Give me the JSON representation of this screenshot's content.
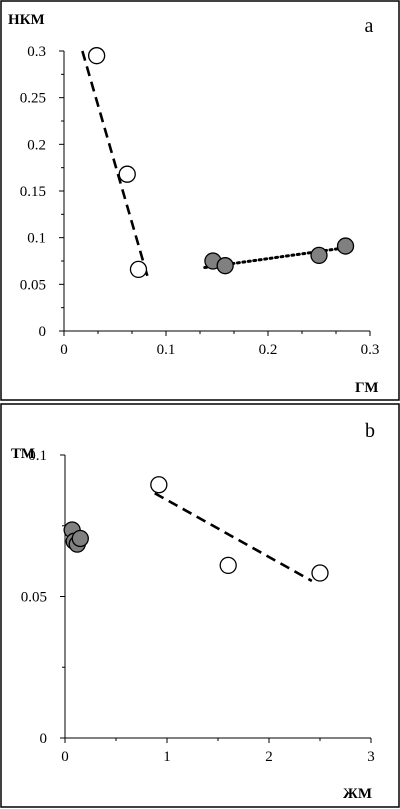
{
  "chart_data": [
    {
      "panel": "a",
      "type": "scatter",
      "xlabel": "ГМ",
      "ylabel": "НКМ",
      "xlim": [
        0,
        0.3
      ],
      "ylim": [
        0,
        0.3
      ],
      "xticks": [
        "0",
        "0.1",
        "0.2",
        "0.3"
      ],
      "yticks": [
        "0",
        "0.05",
        "0.1",
        "0.15",
        "0.2",
        "0.25",
        "0.3"
      ],
      "grid": false,
      "series": [
        {
          "style": "open",
          "points": [
            [
              0.032,
              0.295
            ],
            [
              0.062,
              0.168
            ],
            [
              0.073,
              0.066
            ]
          ],
          "trend": {
            "style": "dashed",
            "x": [
              0.018,
              0.082
            ],
            "y": [
              0.3,
              0.058
            ]
          }
        },
        {
          "style": "filled",
          "points": [
            [
              0.146,
              0.075
            ],
            [
              0.158,
              0.07
            ],
            [
              0.25,
              0.081
            ],
            [
              0.276,
              0.091
            ]
          ],
          "trend": {
            "style": "dotted",
            "x": [
              0.138,
              0.281
            ],
            "y": [
              0.068,
              0.09
            ]
          }
        }
      ]
    },
    {
      "panel": "b",
      "type": "scatter",
      "xlabel": "ЖМ",
      "ylabel": "ТМ",
      "xlim": [
        0,
        3
      ],
      "ylim": [
        0,
        0.1
      ],
      "xticks": [
        "0",
        "1",
        "2",
        "3"
      ],
      "yticks": [
        "0",
        "0.05",
        "0.1"
      ],
      "grid": false,
      "series": [
        {
          "style": "filled",
          "points": [
            [
              0.07,
              0.0735
            ],
            [
              0.09,
              0.0695
            ],
            [
              0.12,
              0.0685
            ],
            [
              0.15,
              0.0705
            ]
          ]
        },
        {
          "style": "open",
          "points": [
            [
              0.92,
              0.0895
            ],
            [
              1.6,
              0.061
            ],
            [
              2.5,
              0.0583
            ]
          ],
          "trend": {
            "style": "dashed",
            "x": [
              0.88,
              2.42
            ],
            "y": [
              0.0865,
              0.0555
            ]
          }
        }
      ]
    }
  ]
}
